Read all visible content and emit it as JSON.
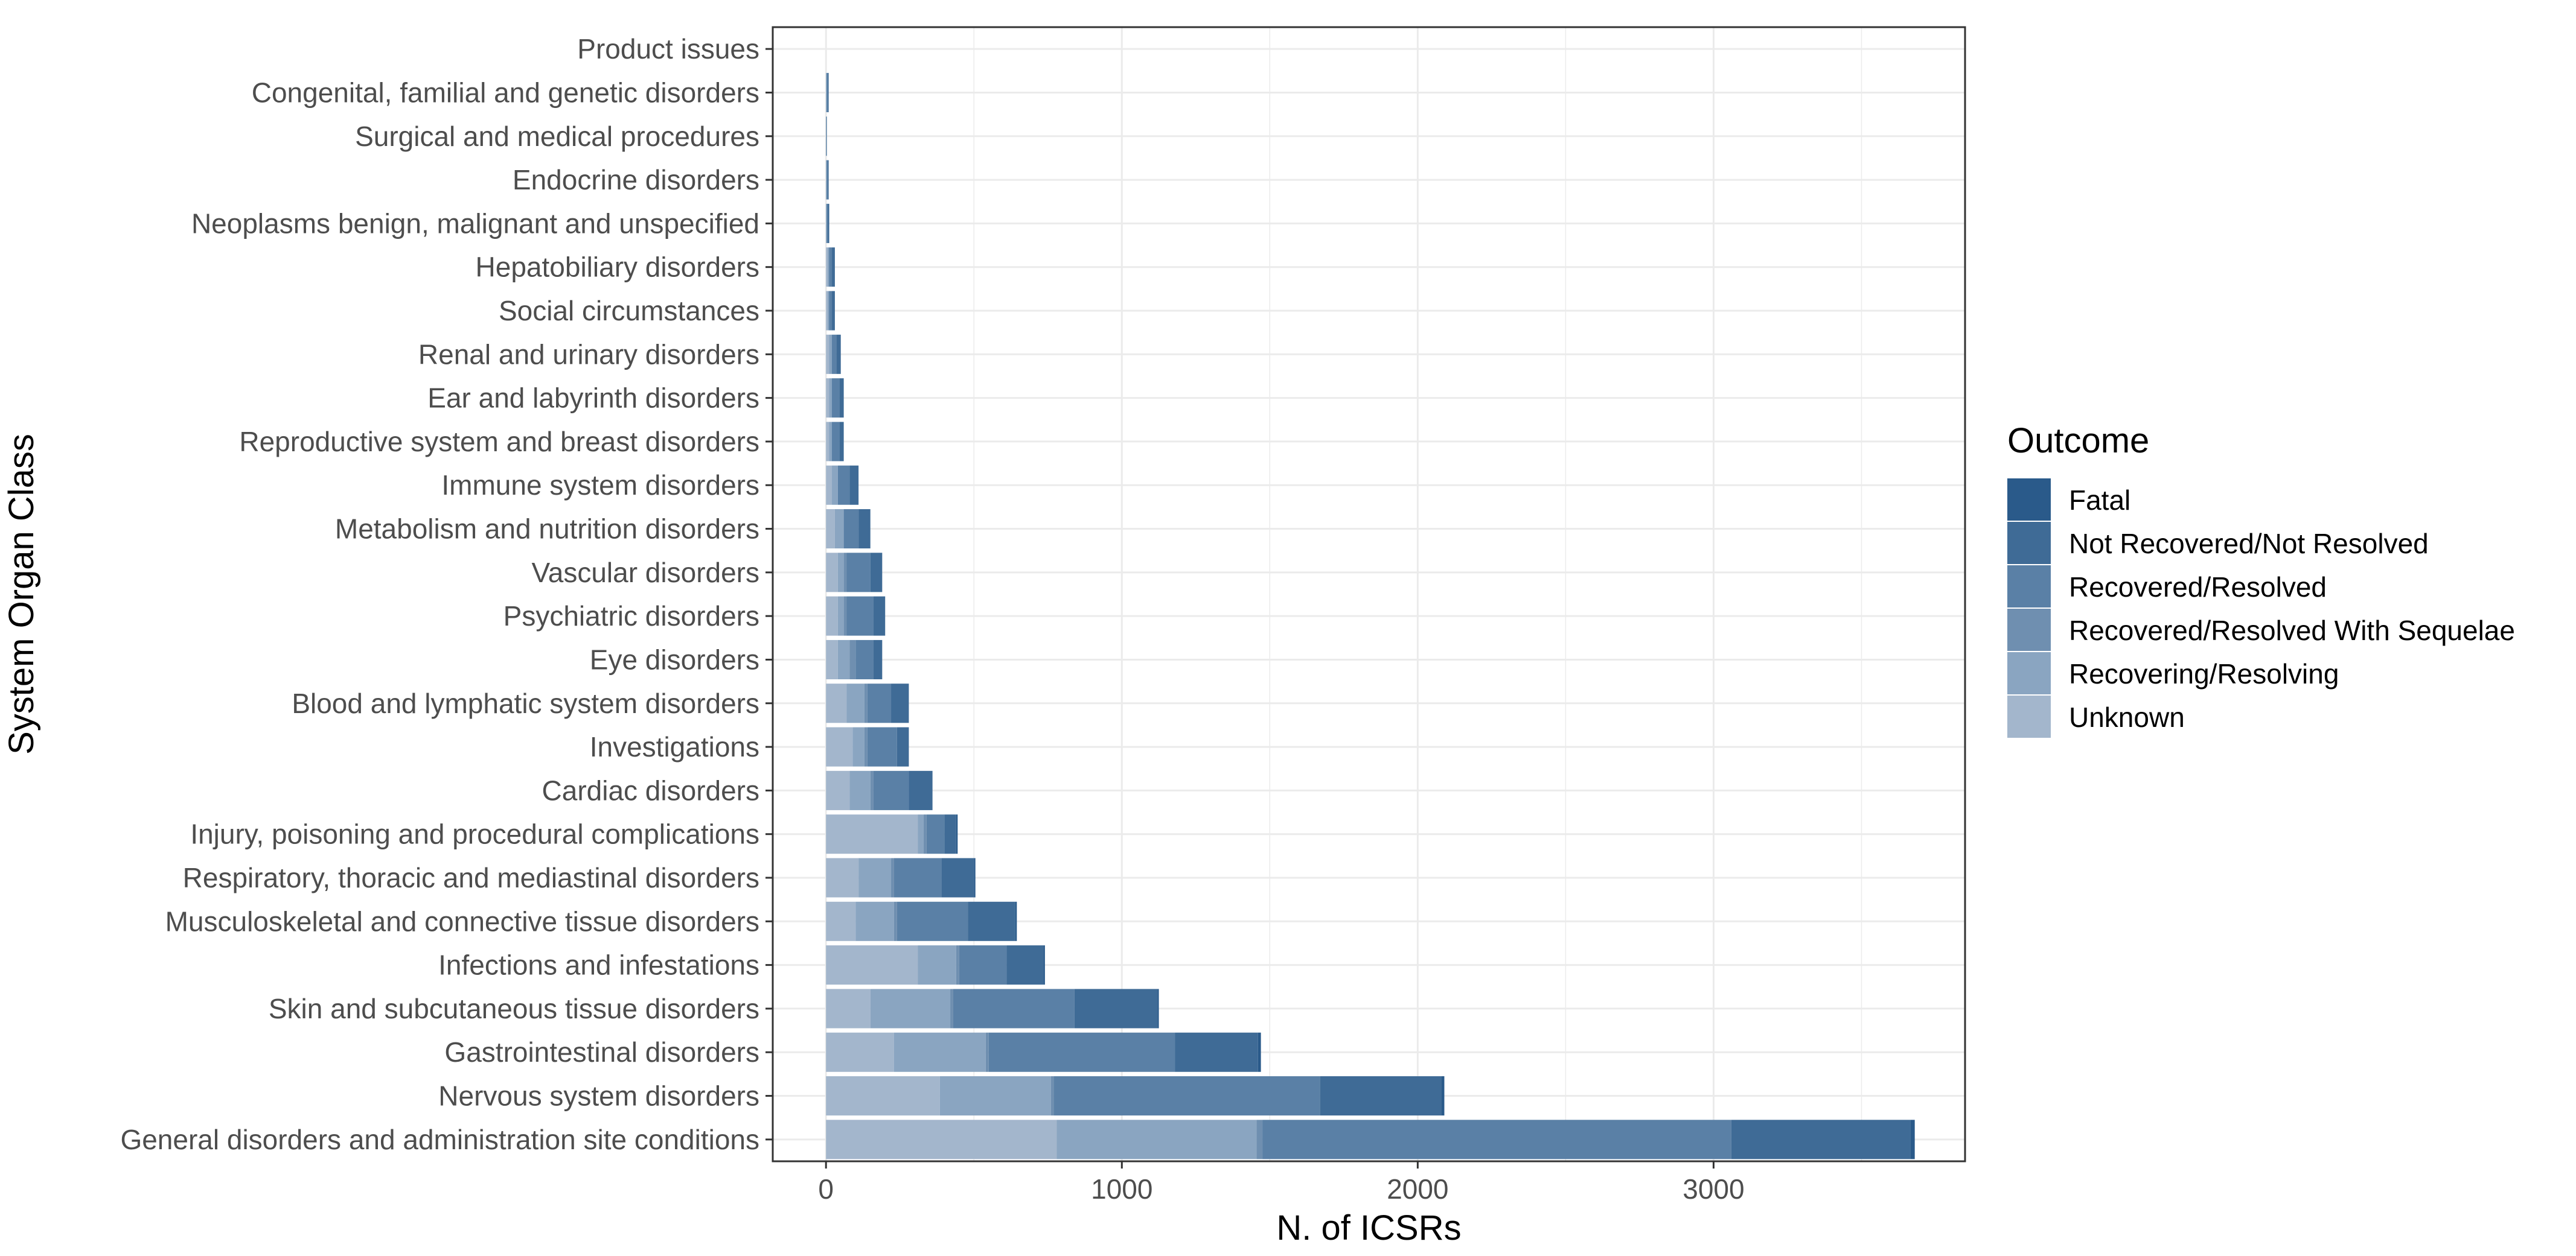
{
  "chart_data": {
    "type": "bar",
    "orientation": "horizontal",
    "stacked": true,
    "xlabel": "N. of ICSRs",
    "ylabel": "System Organ Class",
    "xlim": [
      -180,
      3850
    ],
    "x_ticks": [
      0,
      1000,
      2000,
      3000
    ],
    "x_tick_labels": [
      "0",
      "1000",
      "2000",
      "3000"
    ],
    "grid": true,
    "legend_position": "right",
    "legend_title": "Outcome",
    "colors": {
      "Fatal": "#2a5a8a",
      "Not Recovered/Not Resolved": "#3f6b96",
      "Recovered/Resolved": "#5a80a6",
      "Recovered/Resolved With Sequelae": "#6f8fb0",
      "Recovering/Resolving": "#8aa5c1",
      "Unknown": "#a3b6cc",
      "panel_border": "#333333",
      "grid": "#ebebeb",
      "background": "#ffffff"
    },
    "stack_order": [
      "Unknown",
      "Recovering/Resolving",
      "Recovered/Resolved With Sequelae",
      "Recovered/Resolved",
      "Not Recovered/Not Resolved",
      "Fatal"
    ],
    "legend_order": [
      "Fatal",
      "Not Recovered/Not Resolved",
      "Recovered/Resolved",
      "Recovered/Resolved With Sequelae",
      "Recovering/Resolving",
      "Unknown"
    ],
    "categories": [
      "Product issues",
      "Congenital, familial and genetic disorders",
      "Surgical and medical procedures",
      "Endocrine disorders",
      "Neoplasms benign, malignant and unspecified",
      "Hepatobiliary disorders",
      "Social circumstances",
      "Renal and urinary disorders",
      "Ear and labyrinth disorders",
      "Reproductive system and breast disorders",
      "Immune system disorders",
      "Metabolism and nutrition disorders",
      "Vascular disorders",
      "Psychiatric disorders",
      "Eye disorders",
      "Blood and lymphatic system disorders",
      "Investigations",
      "Cardiac disorders",
      "Injury, poisoning and procedural complications",
      "Respiratory, thoracic and mediastinal disorders",
      "Musculoskeletal and connective tissue disorders",
      "Infections and infestations",
      "Skin and subcutaneous tissue disorders",
      "Gastrointestinal disorders",
      "Nervous system disorders",
      "General disorders and administration site conditions"
    ],
    "series": [
      {
        "name": "Unknown",
        "values": [
          0,
          0,
          0,
          0,
          0,
          5,
          5,
          10,
          10,
          10,
          20,
          30,
          40,
          40,
          40,
          70,
          90,
          80,
          310,
          110,
          100,
          310,
          150,
          230,
          385,
          780
        ]
      },
      {
        "name": "Recovering/Resolving",
        "values": [
          0,
          2,
          0,
          2,
          2,
          5,
          5,
          10,
          10,
          10,
          20,
          30,
          20,
          20,
          40,
          60,
          40,
          70,
          20,
          110,
          130,
          130,
          270,
          310,
          375,
          675
        ]
      },
      {
        "name": "Recovered/Resolved With Sequelae",
        "values": [
          0,
          0,
          0,
          0,
          0,
          0,
          0,
          0,
          0,
          0,
          0,
          0,
          10,
          10,
          20,
          10,
          10,
          10,
          10,
          10,
          10,
          10,
          10,
          10,
          10,
          20
        ]
      },
      {
        "name": "Recovered/Resolved",
        "values": [
          0,
          3,
          2,
          3,
          3,
          10,
          10,
          15,
          25,
          25,
          40,
          50,
          80,
          90,
          60,
          80,
          100,
          120,
          60,
          160,
          240,
          160,
          410,
          630,
          900,
          1585
        ]
      },
      {
        "name": "Not Recovered/Not Resolved",
        "values": [
          0,
          3,
          1,
          3,
          5,
          10,
          10,
          15,
          15,
          15,
          30,
          40,
          40,
          40,
          30,
          60,
          40,
          80,
          40,
          110,
          160,
          125,
          280,
          280,
          410,
          605
        ]
      },
      {
        "name": "Fatal",
        "values": [
          0,
          1,
          0,
          1,
          1,
          0,
          0,
          0,
          0,
          0,
          0,
          0,
          0,
          0,
          0,
          0,
          0,
          0,
          5,
          5,
          5,
          5,
          5,
          10,
          10,
          15
        ]
      }
    ]
  }
}
